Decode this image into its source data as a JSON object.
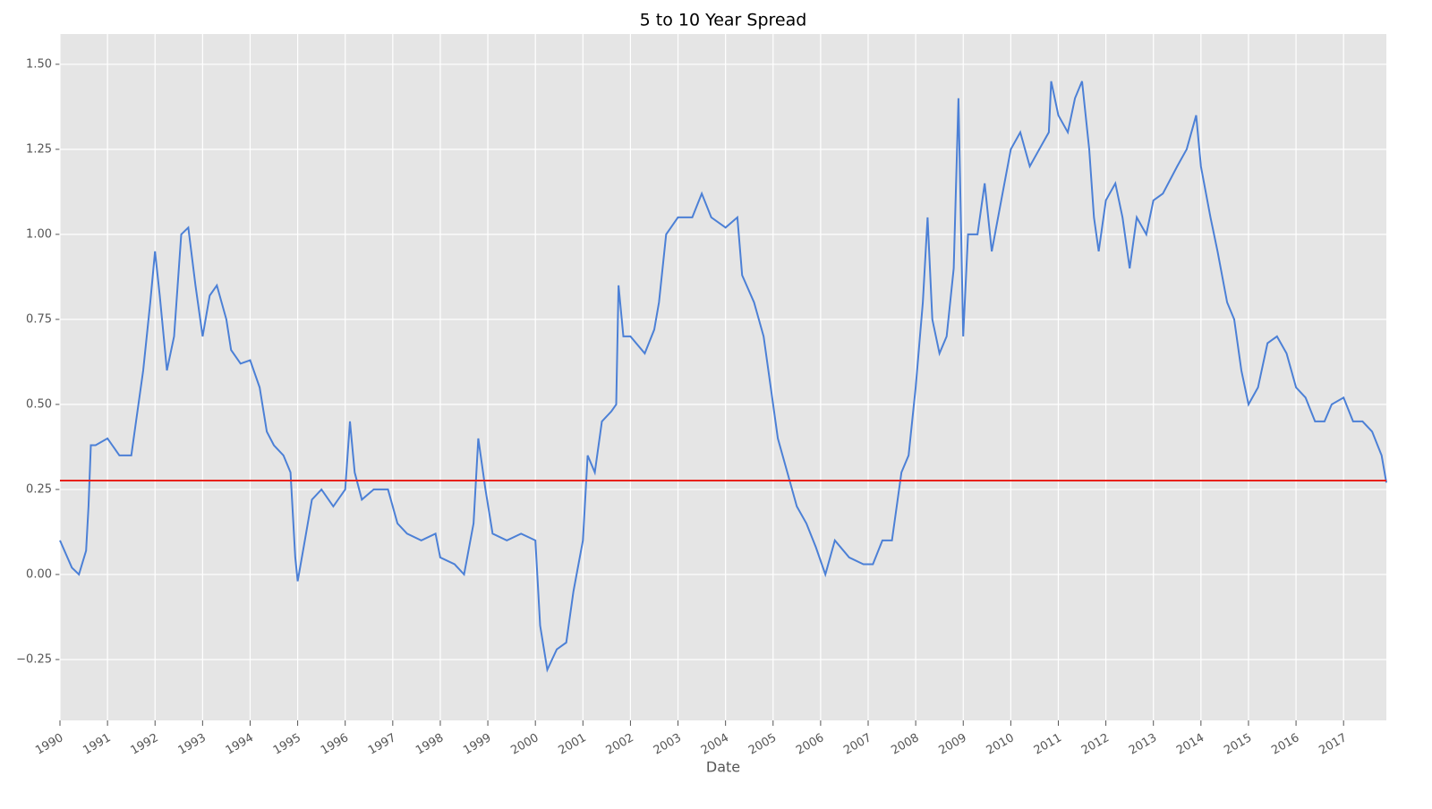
{
  "chart_data": {
    "type": "line",
    "title": "5 to 10 Year Spread",
    "x_label": "Date",
    "x": [
      1990.0,
      1990.25,
      1990.4,
      1990.55,
      1990.6,
      1990.65,
      1990.75,
      1991.0,
      1991.25,
      1991.5,
      1991.6,
      1991.75,
      1991.9,
      1992.0,
      1992.1,
      1992.25,
      1992.4,
      1992.55,
      1992.7,
      1992.85,
      1993.0,
      1993.15,
      1993.3,
      1993.5,
      1993.6,
      1993.8,
      1994.0,
      1994.2,
      1994.35,
      1994.5,
      1994.7,
      1994.85,
      1994.95,
      1995.0,
      1995.15,
      1995.3,
      1995.5,
      1995.75,
      1996.0,
      1996.1,
      1996.2,
      1996.35,
      1996.6,
      1996.9,
      1997.1,
      1997.3,
      1997.6,
      1997.9,
      1998.0,
      1998.3,
      1998.5,
      1998.7,
      1998.8,
      1998.95,
      1999.1,
      1999.4,
      1999.7,
      2000.0,
      2000.1,
      2000.25,
      2000.45,
      2000.65,
      2000.8,
      2001.0,
      2001.1,
      2001.25,
      2001.4,
      2001.6,
      2001.7,
      2001.75,
      2001.85,
      2002.0,
      2002.3,
      2002.5,
      2002.6,
      2002.75,
      2003.0,
      2003.3,
      2003.5,
      2003.7,
      2004.0,
      2004.25,
      2004.35,
      2004.6,
      2004.8,
      2005.0,
      2005.1,
      2005.3,
      2005.5,
      2005.7,
      2005.9,
      2006.1,
      2006.3,
      2006.6,
      2006.9,
      2007.1,
      2007.3,
      2007.5,
      2007.7,
      2007.85,
      2008.0,
      2008.15,
      2008.25,
      2008.35,
      2008.5,
      2008.65,
      2008.8,
      2008.9,
      2009.0,
      2009.1,
      2009.3,
      2009.45,
      2009.6,
      2009.8,
      2010.0,
      2010.2,
      2010.4,
      2010.6,
      2010.8,
      2010.85,
      2011.0,
      2011.2,
      2011.35,
      2011.5,
      2011.65,
      2011.75,
      2011.85,
      2012.0,
      2012.2,
      2012.35,
      2012.5,
      2012.65,
      2012.85,
      2013.0,
      2013.2,
      2013.5,
      2013.7,
      2013.9,
      2014.0,
      2014.2,
      2014.35,
      2014.55,
      2014.7,
      2014.85,
      2015.0,
      2015.2,
      2015.4,
      2015.6,
      2015.8,
      2016.0,
      2016.2,
      2016.4,
      2016.6,
      2016.75,
      2017.0,
      2017.2,
      2017.4,
      2017.6,
      2017.8,
      2017.9
    ],
    "values": [
      0.1,
      0.02,
      0.0,
      0.07,
      0.2,
      0.38,
      0.38,
      0.4,
      0.35,
      0.35,
      0.45,
      0.6,
      0.8,
      0.95,
      0.82,
      0.6,
      0.7,
      1.0,
      1.02,
      0.85,
      0.7,
      0.82,
      0.85,
      0.75,
      0.66,
      0.62,
      0.63,
      0.55,
      0.42,
      0.38,
      0.35,
      0.3,
      0.05,
      -0.02,
      0.1,
      0.22,
      0.25,
      0.2,
      0.25,
      0.45,
      0.3,
      0.22,
      0.25,
      0.25,
      0.15,
      0.12,
      0.1,
      0.12,
      0.05,
      0.03,
      0.0,
      0.15,
      0.4,
      0.25,
      0.12,
      0.1,
      0.12,
      0.1,
      -0.15,
      -0.28,
      -0.22,
      -0.2,
      -0.05,
      0.1,
      0.35,
      0.3,
      0.45,
      0.48,
      0.5,
      0.85,
      0.7,
      0.7,
      0.65,
      0.72,
      0.8,
      1.0,
      1.05,
      1.05,
      1.12,
      1.05,
      1.02,
      1.05,
      0.88,
      0.8,
      0.7,
      0.5,
      0.4,
      0.3,
      0.2,
      0.15,
      0.08,
      0.0,
      0.1,
      0.05,
      0.03,
      0.03,
      0.1,
      0.1,
      0.3,
      0.35,
      0.55,
      0.8,
      1.05,
      0.75,
      0.65,
      0.7,
      0.9,
      1.4,
      0.7,
      1.0,
      1.0,
      1.15,
      0.95,
      1.1,
      1.25,
      1.3,
      1.2,
      1.25,
      1.3,
      1.45,
      1.35,
      1.3,
      1.4,
      1.45,
      1.25,
      1.05,
      0.95,
      1.1,
      1.15,
      1.05,
      0.9,
      1.05,
      1.0,
      1.1,
      1.12,
      1.2,
      1.25,
      1.35,
      1.2,
      1.05,
      0.95,
      0.8,
      0.75,
      0.6,
      0.5,
      0.55,
      0.68,
      0.7,
      0.65,
      0.55,
      0.52,
      0.45,
      0.45,
      0.5,
      0.52,
      0.45,
      0.45,
      0.42,
      0.35,
      0.27
    ],
    "color": "#4c80d6",
    "hline": 0.276,
    "hline_color": "#e8211b",
    "xlim": [
      1990,
      2017.9
    ],
    "xticks": [
      1990,
      1991,
      1992,
      1993,
      1994,
      1995,
      1996,
      1997,
      1998,
      1999,
      2000,
      2001,
      2002,
      2003,
      2004,
      2005,
      2006,
      2007,
      2008,
      2009,
      2010,
      2011,
      2012,
      2013,
      2014,
      2015,
      2016,
      2017
    ],
    "ylim": [
      -0.429,
      1.589
    ],
    "yticks": [
      {
        "value": -0.25,
        "label": "−0.25"
      },
      {
        "value": 0,
        "label": "0.00"
      },
      0.25,
      {
        "value": 0.5,
        "label": "0.50"
      },
      0.75,
      {
        "value": 1,
        "label": "1.00"
      },
      1.25,
      {
        "value": 1.5,
        "label": "1.50"
      }
    ],
    "grid": true
  }
}
